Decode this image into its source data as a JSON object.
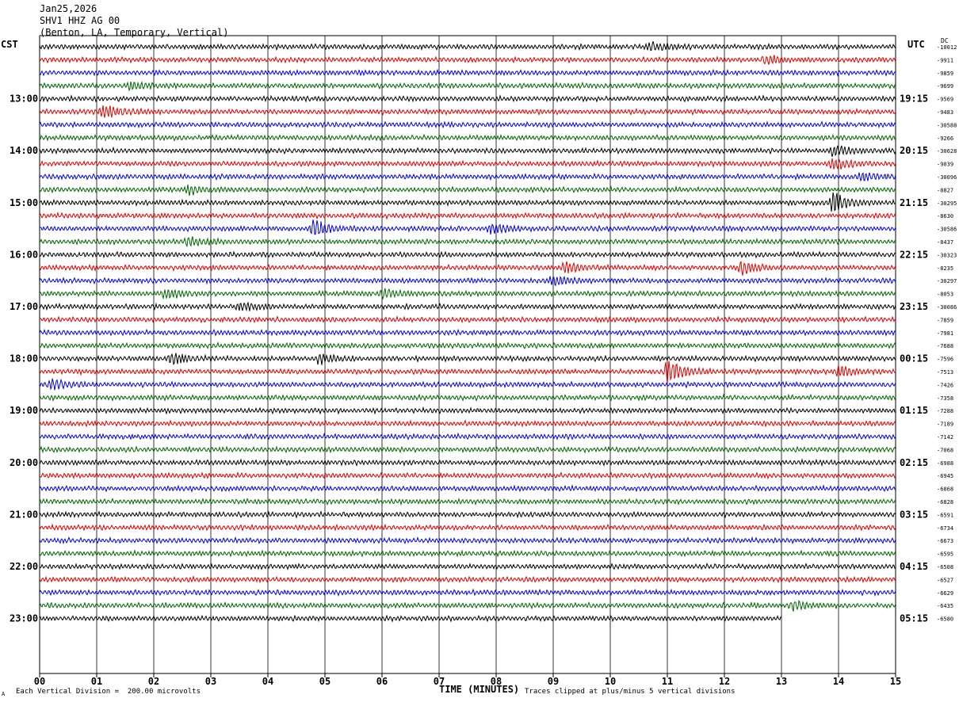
{
  "header": {
    "date": "Jan25,2026",
    "station": "SHV1 HHZ AG 00",
    "location": "(Benton, LA, Temporary, Vertical)"
  },
  "left_tz": "CST",
  "right_tz": "UTC",
  "right_corner": "DC",
  "footer": {
    "scale_note": "Each Vertical Division =  200.00 microvolts",
    "clip_note": "Traces clipped at plus/minus 5 vertical divisions",
    "corner_mark": "A"
  },
  "colors": {
    "trace_cycle": [
      "#000000",
      "#e00000",
      "#0000e0",
      "#006400"
    ],
    "grid": "#000000",
    "background": "#ffffff"
  },
  "chart_data": {
    "type": "line",
    "title": "",
    "xlabel": "TIME (MINUTES)",
    "xlim": [
      0,
      15
    ],
    "x_ticks": [
      "00",
      "01",
      "02",
      "03",
      "04",
      "05",
      "06",
      "07",
      "08",
      "09",
      "10",
      "11",
      "12",
      "13",
      "14",
      "15"
    ],
    "grid": true,
    "trace_count": 45,
    "last_trace_minutes": 13,
    "left_hour_labels": [
      "13:00",
      "14:00",
      "15:00",
      "16:00",
      "17:00",
      "18:00",
      "19:00",
      "20:00",
      "21:00",
      "22:00",
      "23:00"
    ],
    "right_hour_labels": [
      "19:15",
      "20:15",
      "21:15",
      "22:15",
      "23:15",
      "00:15",
      "01:15",
      "02:15",
      "03:15",
      "04:15",
      "05:15"
    ],
    "trace_offsets": [
      "-10012",
      "-9911",
      "-9859",
      "-9699",
      "-9569",
      "-9483",
      "-30588",
      "-9266",
      "-30628",
      "-9039",
      "-30096",
      "-8827",
      "-30295",
      "-8630",
      "-30586",
      "-8437",
      "-30323",
      "-8235",
      "-30297",
      "-8053",
      "-30086",
      "-7859",
      "-7981",
      "-7688",
      "-7596",
      "-7513",
      "-7426",
      "-7358",
      "-7288",
      "-7189",
      "-7142",
      "-7068",
      "-6988",
      "-6945",
      "-6868",
      "-6828",
      "-6591",
      "-6734",
      "-6673",
      "-6595",
      "-6508",
      "-6527",
      "-6629",
      "-6435",
      "-6580"
    ],
    "events": [
      {
        "trace": 0,
        "minute": 10.7,
        "level": 1.3
      },
      {
        "trace": 1,
        "minute": 12.7,
        "level": 1.4
      },
      {
        "trace": 3,
        "minute": 1.6,
        "level": 1.3
      },
      {
        "trace": 5,
        "minute": 1.1,
        "level": 2.2
      },
      {
        "trace": 8,
        "minute": 13.9,
        "level": 1.5
      },
      {
        "trace": 9,
        "minute": 13.9,
        "level": 2.0
      },
      {
        "trace": 10,
        "minute": 14.4,
        "level": 1.4
      },
      {
        "trace": 11,
        "minute": 2.6,
        "level": 1.3
      },
      {
        "trace": 12,
        "minute": 13.9,
        "level": 3.4
      },
      {
        "trace": 14,
        "minute": 4.8,
        "level": 2.8
      },
      {
        "trace": 14,
        "minute": 7.9,
        "level": 1.5
      },
      {
        "trace": 15,
        "minute": 2.6,
        "level": 1.3
      },
      {
        "trace": 17,
        "minute": 9.2,
        "level": 1.6
      },
      {
        "trace": 17,
        "minute": 12.3,
        "level": 2.0
      },
      {
        "trace": 18,
        "minute": 9.0,
        "level": 1.4
      },
      {
        "trace": 19,
        "minute": 2.2,
        "level": 1.5
      },
      {
        "trace": 19,
        "minute": 6.0,
        "level": 1.6
      },
      {
        "trace": 20,
        "minute": 3.5,
        "level": 1.3
      },
      {
        "trace": 24,
        "minute": 2.3,
        "level": 1.8
      },
      {
        "trace": 24,
        "minute": 4.9,
        "level": 1.4
      },
      {
        "trace": 25,
        "minute": 11.0,
        "level": 3.5
      },
      {
        "trace": 25,
        "minute": 14.0,
        "level": 1.6
      },
      {
        "trace": 26,
        "minute": 0.2,
        "level": 1.5
      },
      {
        "trace": 43,
        "minute": 13.2,
        "level": 1.4
      }
    ]
  }
}
